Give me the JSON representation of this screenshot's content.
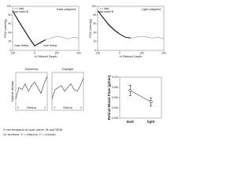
{
  "chart_data": [
    {
      "type": "line",
      "title": "Dark-adapted",
      "ylabel": "PO2 (mmHg)",
      "xlabel": "% Retinal Depth",
      "annotations": [
        "Outer Retina",
        "Inner Retina"
      ],
      "x": [
        -100,
        -75,
        -50,
        -25,
        0,
        25,
        50,
        75,
        100,
        125,
        150,
        175,
        200
      ],
      "series": [
        {
          "name": "data",
          "color": "#999999",
          "values": [
            90,
            70,
            50,
            30,
            12,
            15,
            25,
            28,
            32,
            30,
            26,
            30,
            28
          ]
        },
        {
          "name": "model fit",
          "color": "#000000",
          "values": [
            90,
            68,
            48,
            28,
            10,
            18,
            24,
            null,
            null,
            null,
            null,
            null,
            null
          ]
        }
      ],
      "xlim": [
        -100,
        200
      ],
      "xticks": [
        -100,
        0,
        100,
        200
      ],
      "ylim": [
        0,
        100
      ],
      "yticks": [
        0,
        20,
        40,
        60,
        80,
        100
      ]
    },
    {
      "type": "line",
      "title": "Light-adapted",
      "ylabel": "PO2 (mmHg)",
      "xlabel": "% Retinal Depth",
      "x": [
        -100,
        -75,
        -50,
        -25,
        0,
        25,
        50,
        75,
        100,
        125,
        150,
        175,
        200
      ],
      "series": [
        {
          "name": "data",
          "color": "#999999",
          "values": [
            90,
            75,
            60,
            48,
            38,
            30,
            28,
            30,
            32,
            30,
            28,
            30,
            26
          ]
        },
        {
          "name": "model fit",
          "color": "#000000",
          "values": [
            90,
            74,
            58,
            46,
            37,
            30,
            28,
            null,
            null,
            null,
            null,
            null,
            null
          ]
        }
      ],
      "xlim": [
        -100,
        200
      ],
      "xticks": [
        -100,
        0,
        100,
        200
      ],
      "ylim": [
        0,
        100
      ],
      "yticks": [
        0,
        20,
        40,
        60,
        80,
        100
      ]
    },
    {
      "type": "line",
      "title": "Darkness",
      "ylabel": "Optical density",
      "xlabel": "Retina",
      "annotations": [
        "V",
        "C"
      ],
      "x": [
        0,
        1,
        2,
        3,
        4,
        5,
        6,
        7,
        8,
        9,
        10
      ],
      "series": [
        {
          "color": "#333333",
          "values": [
            0.3,
            0.6,
            0.55,
            0.7,
            0.5,
            0.65,
            0.75,
            0.6,
            0.45,
            0.7,
            0.9
          ]
        }
      ],
      "xlim": [
        0,
        10
      ],
      "ylim": [
        0,
        1
      ]
    },
    {
      "type": "line",
      "title": "Daylight",
      "xlabel": "Retina",
      "annotations": [
        "V",
        "C"
      ],
      "x": [
        0,
        1,
        2,
        3,
        4,
        5,
        6,
        7,
        8,
        9,
        10
      ],
      "series": [
        {
          "color": "#333333",
          "values": [
            0.3,
            0.55,
            0.6,
            0.65,
            0.5,
            0.6,
            0.7,
            0.55,
            0.5,
            0.65,
            0.85
          ]
        }
      ],
      "xlim": [
        0,
        10
      ],
      "ylim": [
        0,
        1
      ]
    },
    {
      "type": "errorbar",
      "ylabel": "Retinal Blood Flow (g/min)",
      "categories": [
        "dark",
        "light"
      ],
      "values": [
        0.057,
        0.046
      ],
      "errors": [
        0.005,
        0.004
      ],
      "color": "#000000",
      "ylim": [
        0.03,
        0.07
      ],
      "yticks": [
        {
          "value": 0.03,
          "label": "0.030"
        },
        {
          "value": 0.04,
          "label": "0.040"
        },
        {
          "value": 0.05,
          "label": "0.050"
        },
        {
          "value": 0.06,
          "label": "0.060"
        },
        {
          "value": 0.07,
          "label": "0.070"
        }
      ]
    }
  ],
  "caption": [
    "2 mm temporal of optic nerve, M and SEM,",
    "12 sections. V = vitreous, C = choroid."
  ]
}
